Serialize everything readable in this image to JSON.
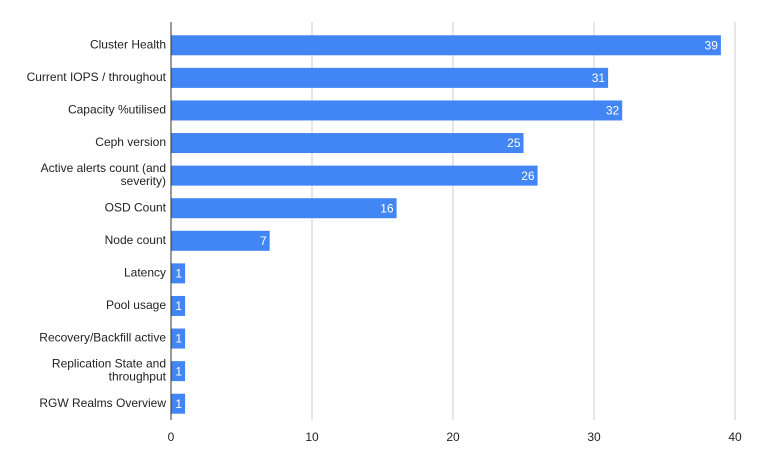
{
  "chart_data": {
    "type": "bar",
    "orientation": "horizontal",
    "categories": [
      "Cluster Health",
      "Current IOPS / throughout",
      "Capacity %utilised",
      "Ceph version",
      "Active alerts count (and severity)",
      "OSD Count",
      "Node count",
      "Latency",
      "Pool usage",
      "Recovery/Backfill active",
      "Replication State and throughput",
      "RGW Realms Overview"
    ],
    "values": [
      39,
      31,
      32,
      25,
      26,
      16,
      7,
      1,
      1,
      1,
      1,
      1
    ],
    "color": "#4285f4",
    "xlim": [
      0,
      40
    ],
    "xticks": [
      0,
      10,
      20,
      30,
      40
    ],
    "grid": true,
    "data_labels": true
  }
}
